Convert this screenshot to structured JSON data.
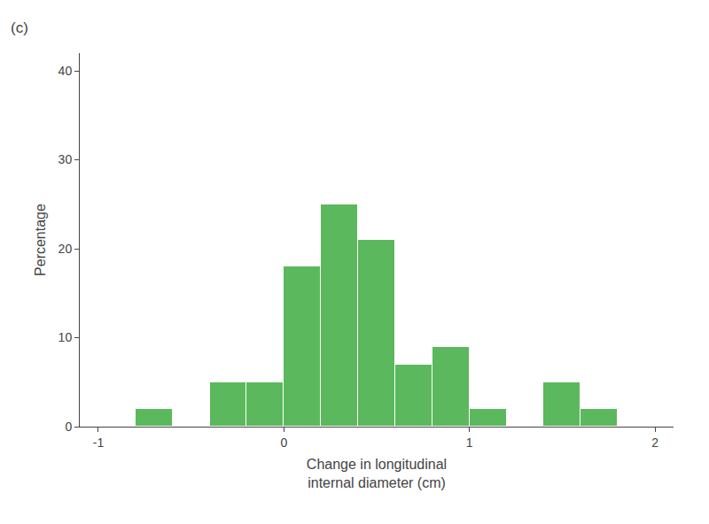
{
  "chart_data": {
    "type": "histogram",
    "bins": [
      -1.0,
      -0.8,
      -0.6,
      -0.4,
      -0.2,
      0.0,
      0.2,
      0.4,
      0.6,
      0.8,
      1.0,
      1.2,
      1.4,
      1.6,
      1.8,
      2.0
    ],
    "values": [
      0,
      2,
      0,
      5,
      5,
      18,
      25,
      21,
      7,
      9,
      2,
      0,
      5,
      2,
      0
    ],
    "color": "#5cb85c",
    "xlabel": "Change in longitudinal\ninternal diameter (cm)",
    "ylabel": "Percentage",
    "xlim": [
      -1.1,
      2.1
    ],
    "ylim": [
      0,
      42
    ],
    "xticks": [
      -1,
      0,
      1,
      2
    ],
    "yticks": [
      0,
      10,
      20,
      30,
      40
    ],
    "annotations": [
      "(c)"
    ],
    "grid": false
  }
}
